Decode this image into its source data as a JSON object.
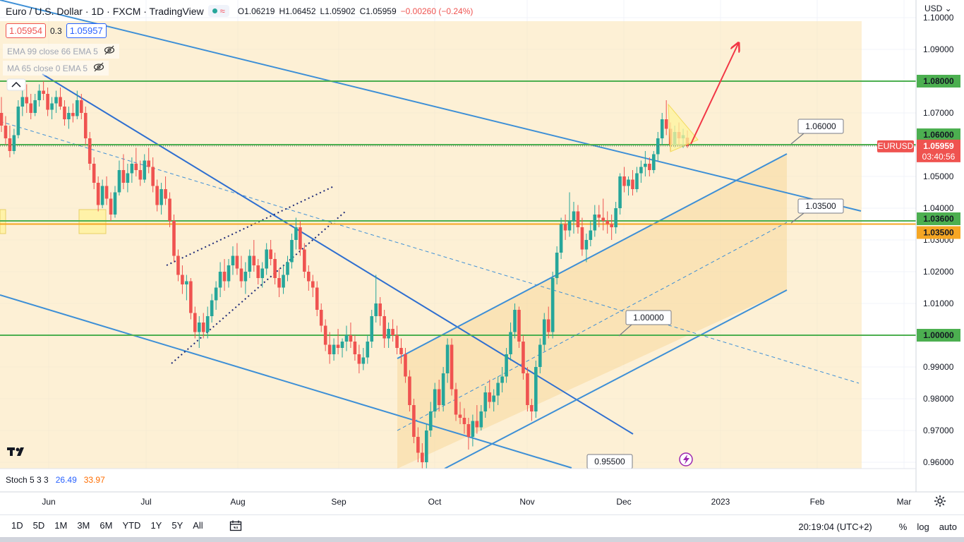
{
  "header": {
    "title": "Euro / U.S. Dollar · 1D · FXCM · TradingView",
    "ohlc": {
      "o": "O1.06219",
      "h": "H1.06452",
      "l": "L1.05902",
      "c": "C1.05959",
      "chg": "−0.00260 (−0.24%)"
    },
    "bid": "1.05954",
    "spread": "0.3",
    "ask": "1.05957"
  },
  "indicators": [
    {
      "label": "EMA 99 close 66 EMA 5",
      "icon": "eye-off-icon"
    },
    {
      "label": "MA 65 close 0 EMA 5",
      "icon": "eye-off-icon"
    }
  ],
  "stoch": {
    "label": "Stoch 5 3 3",
    "k": "26.49",
    "d": "33.97"
  },
  "currency": "USD",
  "colors": {
    "up": "#26a69a",
    "down": "#ef5350",
    "hline": "#4caf50",
    "channel": "#3d8fd6",
    "box": "#fbe4b3",
    "level1035": "#f5a623"
  },
  "chart_data": {
    "type": "candlestick",
    "title": "Euro / U.S. Dollar · 1D · FXCM",
    "ylim": [
      0.955,
      1.105
    ],
    "x_ticks": [
      "Jun",
      "Jul",
      "Aug",
      "Sep",
      "Oct",
      "Nov",
      "Dec",
      "2023",
      "Feb",
      "Mar"
    ],
    "y_ticks": [
      "0.96000",
      "0.97000",
      "0.98000",
      "0.99000",
      "1.00000",
      "1.01000",
      "1.02000",
      "1.03000",
      "1.04000",
      "1.05000",
      "1.06000",
      "1.07000",
      "1.09000",
      "1.10000"
    ],
    "last_price": "1.05959",
    "last_symbol": "EURUSD",
    "countdown": "03:40:56",
    "horizontal_levels": [
      "1.08000",
      "1.06000",
      "1.03600",
      "1.03500",
      "1.00000"
    ],
    "annotations": [
      "1.06000",
      "1.03500",
      "1.00000",
      "0.95500"
    ],
    "candles": [
      [
        1.07,
        1.075,
        1.064,
        1.066
      ],
      [
        1.066,
        1.069,
        1.06,
        1.062
      ],
      [
        1.062,
        1.066,
        1.056,
        1.058
      ],
      [
        1.058,
        1.065,
        1.057,
        1.063
      ],
      [
        1.063,
        1.074,
        1.062,
        1.072
      ],
      [
        1.072,
        1.078,
        1.069,
        1.075
      ],
      [
        1.075,
        1.079,
        1.07,
        1.073
      ],
      [
        1.073,
        1.076,
        1.068,
        1.07
      ],
      [
        1.07,
        1.076,
        1.069,
        1.074
      ],
      [
        1.074,
        1.079,
        1.072,
        1.077
      ],
      [
        1.077,
        1.08,
        1.074,
        1.076
      ],
      [
        1.076,
        1.078,
        1.069,
        1.071
      ],
      [
        1.071,
        1.075,
        1.068,
        1.073
      ],
      [
        1.073,
        1.077,
        1.07,
        1.075
      ],
      [
        1.075,
        1.078,
        1.071,
        1.072
      ],
      [
        1.072,
        1.074,
        1.066,
        1.068
      ],
      [
        1.068,
        1.072,
        1.065,
        1.07
      ],
      [
        1.07,
        1.073,
        1.067,
        1.069
      ],
      [
        1.069,
        1.077,
        1.068,
        1.074
      ],
      [
        1.074,
        1.076,
        1.068,
        1.07
      ],
      [
        1.07,
        1.072,
        1.06,
        1.062
      ],
      [
        1.062,
        1.064,
        1.052,
        1.054
      ],
      [
        1.054,
        1.056,
        1.046,
        1.048
      ],
      [
        1.048,
        1.05,
        1.039,
        1.041
      ],
      [
        1.041,
        1.049,
        1.04,
        1.047
      ],
      [
        1.047,
        1.05,
        1.041,
        1.043
      ],
      [
        1.043,
        1.045,
        1.036,
        1.038
      ],
      [
        1.038,
        1.047,
        1.037,
        1.045
      ],
      [
        1.045,
        1.055,
        1.044,
        1.052
      ],
      [
        1.052,
        1.057,
        1.046,
        1.048
      ],
      [
        1.048,
        1.054,
        1.045,
        1.051
      ],
      [
        1.051,
        1.056,
        1.048,
        1.054
      ],
      [
        1.054,
        1.059,
        1.05,
        1.052
      ],
      [
        1.052,
        1.055,
        1.047,
        1.049
      ],
      [
        1.049,
        1.057,
        1.048,
        1.055
      ],
      [
        1.055,
        1.059,
        1.051,
        1.053
      ],
      [
        1.053,
        1.056,
        1.045,
        1.047
      ],
      [
        1.047,
        1.049,
        1.039,
        1.041
      ],
      [
        1.041,
        1.048,
        1.038,
        1.046
      ],
      [
        1.046,
        1.05,
        1.041,
        1.043
      ],
      [
        1.043,
        1.045,
        1.034,
        1.036
      ],
      [
        1.036,
        1.038,
        1.023,
        1.025
      ],
      [
        1.025,
        1.027,
        1.017,
        1.019
      ],
      [
        1.019,
        1.022,
        1.013,
        1.016
      ],
      [
        1.016,
        1.019,
        1.011,
        1.017
      ],
      [
        1.017,
        1.018,
        1.005,
        1.007
      ],
      [
        1.007,
        1.009,
        0.999,
        1.001
      ],
      [
        1.001,
        1.006,
        0.996,
        1.004
      ],
      [
        1.004,
        1.007,
        0.999,
        1.001
      ],
      [
        1.001,
        1.009,
        0.999,
        1.006
      ],
      [
        1.006,
        1.013,
        1.004,
        1.011
      ],
      [
        1.011,
        1.017,
        1.008,
        1.015
      ],
      [
        1.015,
        1.023,
        1.012,
        1.02
      ],
      [
        1.02,
        1.024,
        1.014,
        1.017
      ],
      [
        1.017,
        1.024,
        1.015,
        1.022
      ],
      [
        1.022,
        1.028,
        1.019,
        1.025
      ],
      [
        1.025,
        1.029,
        1.019,
        1.021
      ],
      [
        1.021,
        1.025,
        1.015,
        1.017
      ],
      [
        1.017,
        1.023,
        1.013,
        1.02
      ],
      [
        1.02,
        1.027,
        1.018,
        1.025
      ],
      [
        1.025,
        1.03,
        1.02,
        1.022
      ],
      [
        1.022,
        1.024,
        1.016,
        1.018
      ],
      [
        1.018,
        1.023,
        1.015,
        1.021
      ],
      [
        1.021,
        1.029,
        1.019,
        1.027
      ],
      [
        1.027,
        1.03,
        1.022,
        1.024
      ],
      [
        1.024,
        1.026,
        1.016,
        1.018
      ],
      [
        1.018,
        1.021,
        1.012,
        1.015
      ],
      [
        1.015,
        1.022,
        1.013,
        1.019
      ],
      [
        1.019,
        1.025,
        1.017,
        1.023
      ],
      [
        1.023,
        1.032,
        1.021,
        1.03
      ],
      [
        1.03,
        1.037,
        1.027,
        1.034
      ],
      [
        1.034,
        1.036,
        1.025,
        1.027
      ],
      [
        1.027,
        1.029,
        1.018,
        1.02
      ],
      [
        1.02,
        1.022,
        1.014,
        1.017
      ],
      [
        1.017,
        1.019,
        1.012,
        1.015
      ],
      [
        1.015,
        1.017,
        1.006,
        1.008
      ],
      [
        1.008,
        1.01,
        1.001,
        1.003
      ],
      [
        1.003,
        1.005,
        0.995,
        0.997
      ],
      [
        0.997,
        1.001,
        0.991,
        0.994
      ],
      [
        0.994,
        0.999,
        0.992,
        0.997
      ],
      [
        0.997,
        1.002,
        0.994,
        0.996
      ],
      [
        0.996,
        0.999,
        0.993,
        0.998
      ],
      [
        0.998,
        1.003,
        0.995,
        1.0
      ],
      [
        1.0,
        1.004,
        0.996,
        0.998
      ],
      [
        0.998,
        1.0,
        0.992,
        0.994
      ],
      [
        0.994,
        0.997,
        0.988,
        0.991
      ],
      [
        0.991,
        0.996,
        0.989,
        0.993
      ],
      [
        0.993,
        1.0,
        0.991,
        0.998
      ],
      [
        0.998,
        1.008,
        0.996,
        1.006
      ],
      [
        1.006,
        1.019,
        1.004,
        1.01
      ],
      [
        1.01,
        1.012,
        1.003,
        1.006
      ],
      [
        1.006,
        1.008,
        0.996,
        0.999
      ],
      [
        0.999,
        1.004,
        0.996,
        1.002
      ],
      [
        1.002,
        1.005,
        0.998,
        1.0
      ],
      [
        1.0,
        1.003,
        0.994,
        0.996
      ],
      [
        0.996,
        0.999,
        0.991,
        0.994
      ],
      [
        0.994,
        0.996,
        0.985,
        0.987
      ],
      [
        0.987,
        0.989,
        0.976,
        0.978
      ],
      [
        0.978,
        0.98,
        0.966,
        0.968
      ],
      [
        0.968,
        0.971,
        0.96,
        0.963
      ],
      [
        0.963,
        0.966,
        0.958,
        0.96
      ],
      [
        0.96,
        0.972,
        0.958,
        0.97
      ],
      [
        0.97,
        0.979,
        0.968,
        0.976
      ],
      [
        0.976,
        0.985,
        0.974,
        0.983
      ],
      [
        0.983,
        0.986,
        0.976,
        0.978
      ],
      [
        0.978,
        0.99,
        0.976,
        0.988
      ],
      [
        0.988,
        0.999,
        0.985,
        0.997
      ],
      [
        0.997,
        0.999,
        0.981,
        0.983
      ],
      [
        0.983,
        0.985,
        0.973,
        0.975
      ],
      [
        0.975,
        0.979,
        0.972,
        0.974
      ],
      [
        0.974,
        0.977,
        0.969,
        0.972
      ],
      [
        0.972,
        0.974,
        0.964,
        0.968
      ],
      [
        0.968,
        0.975,
        0.965,
        0.973
      ],
      [
        0.973,
        0.978,
        0.969,
        0.971
      ],
      [
        0.971,
        0.978,
        0.97,
        0.976
      ],
      [
        0.976,
        0.984,
        0.974,
        0.982
      ],
      [
        0.982,
        0.986,
        0.977,
        0.979
      ],
      [
        0.979,
        0.983,
        0.976,
        0.981
      ],
      [
        0.981,
        0.987,
        0.978,
        0.985
      ],
      [
        0.985,
        0.99,
        0.982,
        0.987
      ],
      [
        0.987,
        0.996,
        0.985,
        0.994
      ],
      [
        0.994,
        1.004,
        0.992,
        1.001
      ],
      [
        1.001,
        1.01,
        0.999,
        1.008
      ],
      [
        1.008,
        1.009,
        0.996,
        0.998
      ],
      [
        0.998,
        1.0,
        0.986,
        0.988
      ],
      [
        0.988,
        0.99,
        0.976,
        0.978
      ],
      [
        0.978,
        0.98,
        0.973,
        0.976
      ],
      [
        0.976,
        0.992,
        0.974,
        0.99
      ],
      [
        0.99,
        0.999,
        0.988,
        0.997
      ],
      [
        0.997,
        1.007,
        0.995,
        1.005
      ],
      [
        1.005,
        1.009,
        0.999,
        1.001
      ],
      [
        1.001,
        1.02,
        0.999,
        1.018
      ],
      [
        1.018,
        1.028,
        1.016,
        1.026
      ],
      [
        1.026,
        1.037,
        1.024,
        1.035
      ],
      [
        1.035,
        1.038,
        1.03,
        1.033
      ],
      [
        1.033,
        1.045,
        1.031,
        1.036
      ],
      [
        1.036,
        1.042,
        1.032,
        1.039
      ],
      [
        1.039,
        1.041,
        1.032,
        1.034
      ],
      [
        1.034,
        1.037,
        1.025,
        1.027
      ],
      [
        1.027,
        1.032,
        1.023,
        1.03
      ],
      [
        1.03,
        1.036,
        1.028,
        1.033
      ],
      [
        1.033,
        1.041,
        1.031,
        1.038
      ],
      [
        1.038,
        1.041,
        1.034,
        1.037
      ],
      [
        1.037,
        1.043,
        1.033,
        1.036
      ],
      [
        1.036,
        1.039,
        1.032,
        1.035
      ],
      [
        1.035,
        1.038,
        1.03,
        1.034
      ],
      [
        1.034,
        1.042,
        1.032,
        1.04
      ],
      [
        1.04,
        1.051,
        1.038,
        1.05
      ],
      [
        1.05,
        1.053,
        1.045,
        1.047
      ],
      [
        1.047,
        1.05,
        1.044,
        1.049
      ],
      [
        1.049,
        1.052,
        1.044,
        1.046
      ],
      [
        1.046,
        1.053,
        1.045,
        1.051
      ],
      [
        1.051,
        1.055,
        1.048,
        1.053
      ],
      [
        1.053,
        1.058,
        1.05,
        1.054
      ],
      [
        1.054,
        1.056,
        1.05,
        1.052
      ],
      [
        1.052,
        1.058,
        1.051,
        1.057
      ],
      [
        1.057,
        1.064,
        1.055,
        1.062
      ],
      [
        1.062,
        1.07,
        1.06,
        1.068
      ],
      [
        1.068,
        1.074,
        1.063,
        1.065
      ],
      [
        1.065,
        1.067,
        1.058,
        1.06
      ],
      [
        1.06,
        1.066,
        1.059,
        1.064
      ],
      [
        1.064,
        1.067,
        1.06,
        1.062
      ],
      [
        1.062,
        1.065,
        1.059,
        1.063
      ],
      [
        1.0622,
        1.0645,
        1.059,
        1.0596
      ]
    ]
  },
  "bottombar": {
    "timeframes": [
      "1D",
      "5D",
      "1M",
      "3M",
      "6M",
      "YTD",
      "1Y",
      "5Y",
      "All"
    ],
    "clock": "20:19:04 (UTC+2)",
    "percent": "%",
    "log": "log",
    "auto": "auto"
  }
}
